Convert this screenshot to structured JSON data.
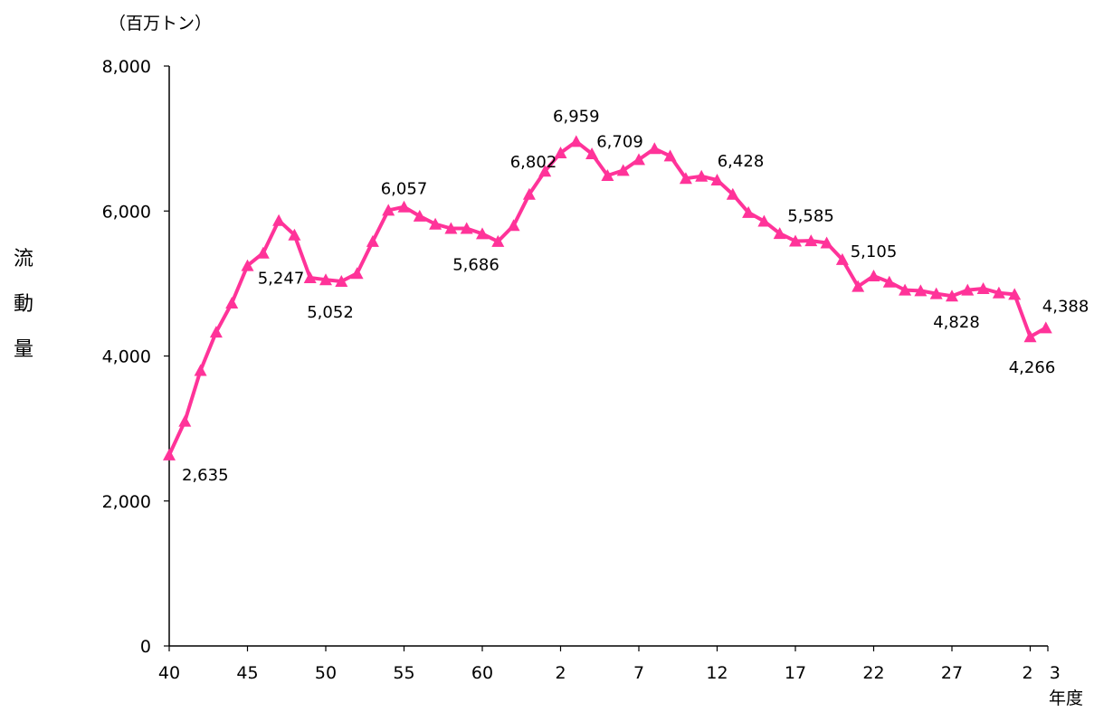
{
  "chart_data": {
    "type": "line",
    "unit_label": "（百万トン）",
    "ylabel": "流動量",
    "xlabel": "年度",
    "ylim": [
      0,
      8000
    ],
    "yticks": [
      0,
      2000,
      4000,
      6000,
      8000
    ],
    "ytick_labels": [
      "0",
      "2,000",
      "4,000",
      "6,000",
      "8,000"
    ],
    "xtick_labels": [
      {
        "i": 0,
        "label": "40"
      },
      {
        "i": 5,
        "label": "45"
      },
      {
        "i": 10,
        "label": "50"
      },
      {
        "i": 15,
        "label": "55"
      },
      {
        "i": 20,
        "label": "60"
      },
      {
        "i": 25,
        "label": "2"
      },
      {
        "i": 30,
        "label": "7"
      },
      {
        "i": 35,
        "label": "12"
      },
      {
        "i": 40,
        "label": "17"
      },
      {
        "i": 45,
        "label": "22"
      },
      {
        "i": 50,
        "label": "27"
      },
      {
        "i": 55,
        "label": "2"
      },
      {
        "i": 56,
        "label": "3"
      }
    ],
    "series": [
      {
        "color": "#ff3399",
        "marker": "triangle",
        "values": [
          2635,
          3100,
          3800,
          4330,
          4730,
          5247,
          5420,
          5870,
          5670,
          5080,
          5052,
          5030,
          5140,
          5580,
          6010,
          6057,
          5930,
          5820,
          5760,
          5760,
          5686,
          5580,
          5800,
          6230,
          6550,
          6802,
          6959,
          6790,
          6490,
          6560,
          6709,
          6860,
          6760,
          6450,
          6480,
          6428,
          6230,
          5980,
          5860,
          5690,
          5585,
          5590,
          5560,
          5330,
          4960,
          5105,
          5020,
          4910,
          4900,
          4860,
          4828,
          4910,
          4930,
          4870,
          4850,
          4266,
          4388
        ]
      }
    ],
    "data_labels": [
      {
        "i": 0,
        "text": "2,635"
      },
      {
        "i": 5,
        "text": "5,247"
      },
      {
        "i": 10,
        "text": "5,052"
      },
      {
        "i": 15,
        "text": "6,057"
      },
      {
        "i": 20,
        "text": "5,686"
      },
      {
        "i": 25,
        "text": "6,802"
      },
      {
        "i": 26,
        "text": "6,959"
      },
      {
        "i": 30,
        "text": "6,709"
      },
      {
        "i": 35,
        "text": "6,428"
      },
      {
        "i": 40,
        "text": "5,585"
      },
      {
        "i": 45,
        "text": "5,105"
      },
      {
        "i": 50,
        "text": "4,828"
      },
      {
        "i": 55,
        "text": "4,266"
      },
      {
        "i": 56,
        "text": "4,388"
      }
    ]
  }
}
